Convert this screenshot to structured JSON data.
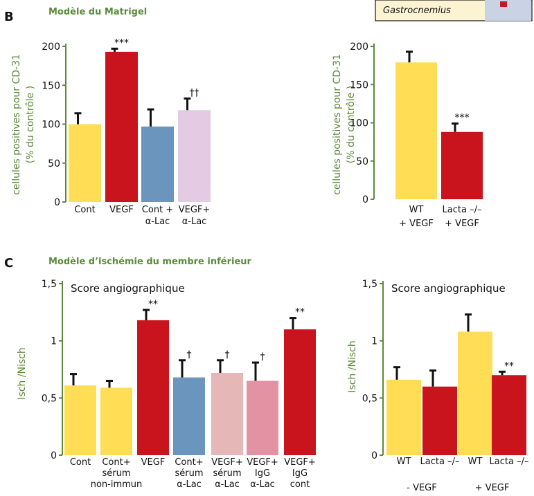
{
  "panels": {
    "B": {
      "letter": "B",
      "title": "Modèle du Matrigel"
    },
    "C": {
      "letter": "C",
      "title": "Modèle d’ischémie du membre inférieur"
    }
  },
  "inset_label": "Gastrocnemius",
  "colors": {
    "axis": "#5a8a3a",
    "yellow": "#ffdd55",
    "red": "#c9141d",
    "blue": "#6b95bd",
    "lilac": "#e3cce3",
    "pink_light": "#e6b7b7",
    "pink": "#e392a3"
  },
  "chart_data": [
    {
      "id": "B-left",
      "type": "bar",
      "ylabel_lines": [
        "cellules positives pour CD-31",
        "(% du contrôle )"
      ],
      "ylim": [
        0,
        200
      ],
      "yticks": [
        "0",
        "50",
        "100",
        "150",
        "200"
      ],
      "categories": [
        {
          "lines": [
            "Cont"
          ]
        },
        {
          "lines": [
            "VEGF"
          ]
        },
        {
          "lines": [
            "Cont +",
            "α-Lac"
          ]
        },
        {
          "lines": [
            "VEGF+",
            "α-Lac"
          ]
        }
      ],
      "values": [
        100,
        193,
        97,
        118
      ],
      "errors": [
        14,
        4,
        22,
        15
      ],
      "colors": [
        "#ffdd55",
        "#c9141d",
        "#6b95bd",
        "#e3cce3"
      ],
      "significance": [
        "",
        "***",
        "",
        "††"
      ]
    },
    {
      "id": "B-right",
      "type": "bar",
      "ylabel_lines": [
        "cellules positives pour CD-31",
        "(% du contrôle )"
      ],
      "ylim": [
        0,
        200
      ],
      "yticks": [
        "0",
        "50",
        "100",
        "150",
        "200"
      ],
      "categories": [
        {
          "lines": [
            "WT",
            "+ VEGF"
          ]
        },
        {
          "lines": [
            "Lacta –/–",
            "+ VEGF"
          ]
        }
      ],
      "values": [
        179,
        88
      ],
      "errors": [
        14,
        11
      ],
      "colors": [
        "#ffdd55",
        "#c9141d"
      ],
      "significance": [
        "",
        "***"
      ]
    },
    {
      "id": "C-left",
      "type": "bar",
      "title": "Score angiographique",
      "ylabel": "Isch /Nisch",
      "ylim": [
        0,
        1.5
      ],
      "yticks": [
        "0",
        "0,5",
        "1",
        "1,5"
      ],
      "categories": [
        {
          "lines": [
            "Cont"
          ]
        },
        {
          "lines": [
            "Cont+",
            "sérum",
            "non-immun"
          ]
        },
        {
          "lines": [
            "VEGF"
          ]
        },
        {
          "lines": [
            "Cont+",
            "sérum",
            "α-Lac"
          ]
        },
        {
          "lines": [
            "VEGF+",
            "sérum",
            "α-Lac"
          ]
        },
        {
          "lines": [
            "VEGF+",
            "IgG",
            "α-Lac"
          ]
        },
        {
          "lines": [
            "VEGF+",
            "IgG",
            "cont"
          ]
        }
      ],
      "values": [
        0.61,
        0.59,
        1.18,
        0.68,
        0.72,
        0.65,
        1.1
      ],
      "errors": [
        0.1,
        0.06,
        0.09,
        0.15,
        0.11,
        0.16,
        0.1
      ],
      "colors": [
        "#ffdd55",
        "#ffdd55",
        "#c9141d",
        "#6b95bd",
        "#e6b7b7",
        "#e392a3",
        "#c9141d"
      ],
      "significance": [
        "",
        "",
        "**",
        "†",
        "†",
        "†",
        "**"
      ]
    },
    {
      "id": "C-right",
      "type": "bar",
      "title": "Score angiographique",
      "ylabel": "Isch /Nisch",
      "ylim": [
        0,
        1.5
      ],
      "yticks": [
        "0",
        "0,5",
        "1",
        "1,5"
      ],
      "categories": [
        {
          "lines": [
            "WT"
          ]
        },
        {
          "lines": [
            "Lacta –/–"
          ]
        },
        {
          "lines": [
            "WT"
          ]
        },
        {
          "lines": [
            "Lacta –/–"
          ]
        }
      ],
      "group_labels": [
        "- VEGF",
        "+ VEGF"
      ],
      "values": [
        0.66,
        0.6,
        1.08,
        0.7
      ],
      "errors": [
        0.11,
        0.14,
        0.15,
        0.03
      ],
      "colors": [
        "#ffdd55",
        "#c9141d",
        "#ffdd55",
        "#c9141d"
      ],
      "significance": [
        "",
        "",
        "",
        "**"
      ]
    }
  ]
}
